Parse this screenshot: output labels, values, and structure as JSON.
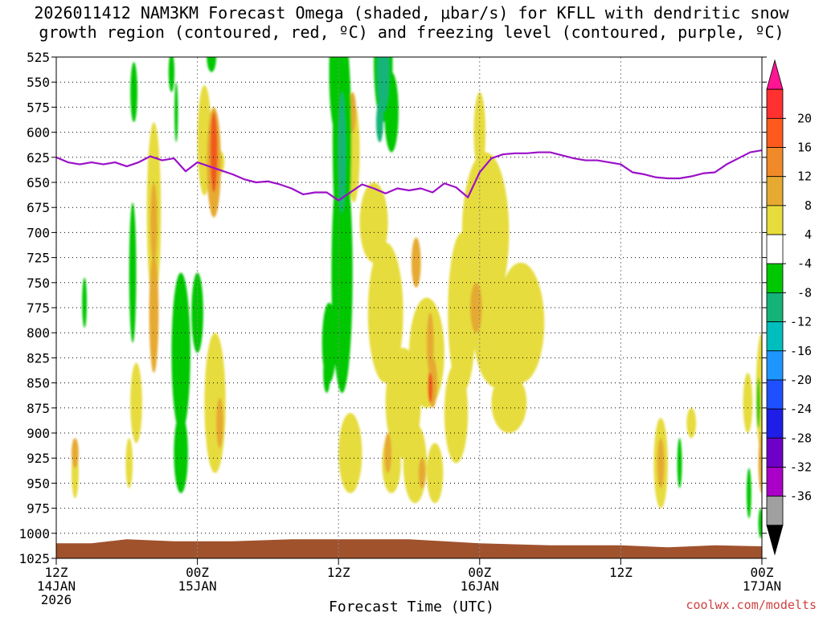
{
  "chart_data": {
    "type": "heatmap",
    "title_line1": "2026011412 NAM3KM Forecast Omega (shaded, μbar/s) for KFLL with dendritic snow",
    "title_line2": "growth region (contoured, red, ºC) and freezing level (contoured, purple, ºC)",
    "xlabel": "Forecast Time (UTC)",
    "credit": "coolwx.com/modelts",
    "x_hours_range": [
      0,
      60
    ],
    "y_levels_range_hPa": [
      525,
      1025
    ],
    "y_ticks": [
      "525",
      "550",
      "575",
      "600",
      "625",
      "650",
      "675",
      "700",
      "725",
      "750",
      "775",
      "800",
      "825",
      "850",
      "875",
      "900",
      "925",
      "950",
      "975",
      "1000",
      "1025"
    ],
    "x_ticks": [
      {
        "hour": 0,
        "lines": [
          "12Z",
          "14JAN",
          "2026"
        ]
      },
      {
        "hour": 12,
        "lines": [
          "00Z",
          "15JAN"
        ]
      },
      {
        "hour": 24,
        "lines": [
          "12Z"
        ]
      },
      {
        "hour": 36,
        "lines": [
          "00Z",
          "16JAN"
        ]
      },
      {
        "hour": 48,
        "lines": [
          "12Z"
        ]
      },
      {
        "hour": 60,
        "lines": [
          "00Z",
          "17JAN"
        ]
      }
    ],
    "colorbar": {
      "labels": [
        "20",
        "16",
        "12",
        "8",
        "4",
        "-4",
        "-8",
        "-12",
        "-16",
        "-20",
        "-24",
        "-28",
        "-32",
        "-36"
      ],
      "colors_top_to_bottom": [
        "#ff1493",
        "#ff3030",
        "#ff5a1e",
        "#f08a28",
        "#e6aa32",
        "#e6dc3c",
        "#ffffff",
        "#00c800",
        "#14b478",
        "#00bebe",
        "#1e96ff",
        "#1e50ff",
        "#1e1ee6",
        "#6e00c8",
        "#aa00c8",
        "#a0a0a0",
        "#000000"
      ]
    },
    "freezing_level": {
      "color": "#9b10c8",
      "hours": [
        0,
        1,
        2,
        3,
        4,
        5,
        6,
        7,
        8,
        9,
        10,
        11,
        12,
        13,
        14,
        15,
        16,
        17,
        18,
        19,
        20,
        21,
        22,
        23,
        24,
        25,
        26,
        27,
        28,
        29,
        30,
        31,
        32,
        33,
        34,
        35,
        36,
        37,
        38,
        39,
        40,
        41,
        42,
        43,
        44,
        45,
        46,
        47,
        48,
        49,
        50,
        51,
        52,
        53,
        54,
        55,
        56,
        57,
        58,
        59,
        60
      ],
      "levels": [
        625,
        630,
        632,
        630,
        632,
        630,
        634,
        630,
        624,
        628,
        626,
        639,
        630,
        634,
        638,
        642,
        647,
        650,
        649,
        652,
        656,
        662,
        660,
        660,
        668,
        660,
        652,
        656,
        661,
        656,
        658,
        656,
        660,
        651,
        655,
        665,
        640,
        626,
        622,
        621,
        621,
        620,
        620,
        623,
        626,
        628,
        628,
        630,
        632,
        640,
        642,
        645,
        646,
        646,
        644,
        641,
        640,
        632,
        626,
        620,
        618
      ]
    },
    "omega_regions": [
      {
        "sign": "up",
        "class": "4-8",
        "centers": [
          [
            8.3,
            680,
            0.6,
            90
          ],
          [
            13.5,
            870,
            0.9,
            70
          ],
          [
            13.9,
            630,
            0.4,
            12
          ],
          [
            6.8,
            870,
            0.5,
            40
          ],
          [
            6.2,
            930,
            0.3,
            25
          ],
          [
            1.6,
            940,
            0.3,
            25
          ],
          [
            12.6,
            608,
            0.6,
            55
          ],
          [
            24.2,
            600,
            0.4,
            20
          ],
          [
            25.3,
            620,
            0.5,
            50
          ],
          [
            27.0,
            690,
            1.2,
            40
          ],
          [
            28.0,
            780,
            1.5,
            70
          ],
          [
            29.5,
            870,
            1.5,
            55
          ],
          [
            30.5,
            930,
            1.0,
            40
          ],
          [
            31.5,
            820,
            1.5,
            55
          ],
          [
            34.5,
            780,
            1.2,
            80
          ],
          [
            36.5,
            700,
            2.0,
            80
          ],
          [
            37.5,
            800,
            2.0,
            55
          ],
          [
            38.5,
            870,
            1.5,
            30
          ],
          [
            39.5,
            790,
            2.0,
            60
          ],
          [
            34.0,
            880,
            1.0,
            50
          ],
          [
            36.0,
            600,
            0.5,
            40
          ],
          [
            25.0,
            920,
            1.0,
            40
          ],
          [
            28.5,
            930,
            0.8,
            30
          ],
          [
            32.2,
            940,
            0.7,
            30
          ],
          [
            51.4,
            930,
            0.6,
            45
          ],
          [
            54.0,
            890,
            0.4,
            15
          ],
          [
            58.8,
            870,
            0.4,
            30
          ],
          [
            60.0,
            860,
            0.5,
            60
          ]
        ]
      },
      {
        "sign": "up",
        "class": "8-12",
        "centers": [
          [
            13.4,
            630,
            0.6,
            55
          ],
          [
            8.3,
            780,
            0.4,
            60
          ],
          [
            8.3,
            690,
            0.3,
            40
          ],
          [
            1.6,
            920,
            0.3,
            15
          ],
          [
            13.9,
            890,
            0.3,
            25
          ],
          [
            30.6,
            730,
            0.4,
            25
          ],
          [
            28.2,
            920,
            0.3,
            20
          ],
          [
            31.8,
            810,
            0.3,
            30
          ],
          [
            32.0,
            850,
            0.4,
            25
          ],
          [
            35.7,
            775,
            0.5,
            25
          ],
          [
            31.1,
            940,
            0.3,
            15
          ],
          [
            51.4,
            930,
            0.3,
            25
          ],
          [
            25.2,
            580,
            0.3,
            20
          ],
          [
            60.0,
            930,
            0.3,
            30
          ]
        ]
      },
      {
        "sign": "up",
        "class": "12-20",
        "centers": [
          [
            13.4,
            620,
            0.3,
            40
          ],
          [
            31.8,
            855,
            0.2,
            15
          ]
        ]
      },
      {
        "sign": "down",
        "class": "-4--8",
        "centers": [
          [
            6.6,
            560,
            0.3,
            30
          ],
          [
            6.5,
            740,
            0.3,
            70
          ],
          [
            10.2,
            580,
            0.15,
            30
          ],
          [
            2.4,
            770,
            0.2,
            25
          ],
          [
            9.8,
            540,
            0.25,
            20
          ],
          [
            13.2,
            525,
            0.4,
            15
          ],
          [
            10.6,
            820,
            0.8,
            80
          ],
          [
            10.6,
            920,
            0.6,
            40
          ],
          [
            12.0,
            780,
            0.5,
            40
          ],
          [
            23.8,
            540,
            0.6,
            60
          ],
          [
            24.3,
            610,
            0.8,
            120
          ],
          [
            24.3,
            740,
            0.9,
            120
          ],
          [
            27.8,
            530,
            0.8,
            60
          ],
          [
            28.5,
            580,
            0.6,
            40
          ],
          [
            23.2,
            810,
            0.6,
            40
          ],
          [
            23.0,
            840,
            0.3,
            20
          ],
          [
            53.0,
            930,
            0.2,
            25
          ],
          [
            58.9,
            960,
            0.2,
            25
          ],
          [
            59.9,
            990,
            0.2,
            15
          ],
          [
            59.7,
            870,
            0.15,
            25
          ]
        ]
      },
      {
        "sign": "down",
        "class": "-8--12",
        "centers": [
          [
            24.3,
            620,
            0.3,
            60
          ],
          [
            27.8,
            540,
            0.5,
            40
          ],
          [
            27.5,
            590,
            0.3,
            20
          ]
        ]
      }
    ],
    "terrain": {
      "color": "#a0522d",
      "surface_hours": [
        0,
        3,
        6,
        10,
        15,
        20,
        25,
        30,
        36,
        42,
        48,
        52,
        56,
        60
      ],
      "surface_levels": [
        1010,
        1010,
        1006,
        1008,
        1008,
        1006,
        1006,
        1006,
        1010,
        1012,
        1012,
        1014,
        1012,
        1013
      ]
    }
  }
}
